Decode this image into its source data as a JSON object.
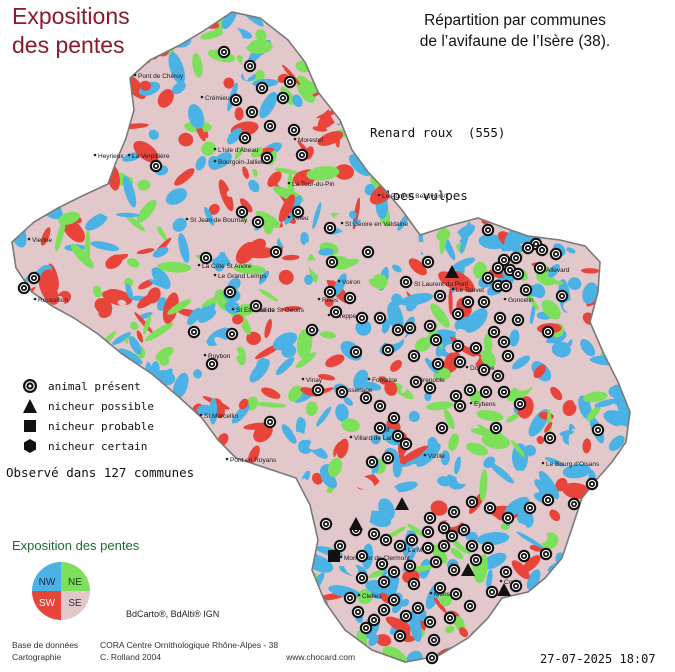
{
  "header": {
    "title_line1": "Expositions",
    "title_line2": "des pentes",
    "subtitle_line1": "Répartition par communes",
    "subtitle_line2": "de l’avifaune de l’Isère (38)."
  },
  "species": {
    "common_name": "Renard roux  (555)",
    "latin_name": "Vulpes vulpes"
  },
  "legend": {
    "items": [
      {
        "symbol": "target",
        "label": "animal présent"
      },
      {
        "symbol": "triangle",
        "label": "nicheur possible"
      },
      {
        "symbol": "square",
        "label": "nicheur probable"
      },
      {
        "symbol": "hexagon",
        "label": "nicheur certain"
      }
    ]
  },
  "observed_text": "Observé dans 127 communes",
  "exposition": {
    "title": "Exposition des pentes",
    "quadrants": [
      {
        "label": "NW",
        "color": "#4ab2e4"
      },
      {
        "label": "NE",
        "color": "#7de05a"
      },
      {
        "label": "SW",
        "color": "#e8443a"
      },
      {
        "label": "SE",
        "color": "#e2c7cb"
      }
    ]
  },
  "source_note": "BdCarto®, BdAlti® IGN",
  "credits": {
    "row1_label": "Base de données",
    "row1_value": "CORA Centre Ornithologique Rhône-Alpes - 38",
    "row2_label": "Cartographie",
    "row2_value": "C. Rolland 2004",
    "row2_url": "www.chocard.com"
  },
  "timestamp": "27-07-2025 18:07",
  "map": {
    "colors": {
      "nw": "#4ab2e4",
      "ne": "#7de05a",
      "sw": "#e8443a",
      "se": "#e2c7cb",
      "outline": "#7a7a7a"
    },
    "place_labels": [
      "Pont de Chéruy",
      "Crémieu",
      "Morestel",
      "La Verpillière",
      "L'Isle d'Abeau",
      "Bourgoin-Jallieu",
      "Heyrieux",
      "La Tour-du-Pin",
      "Le Pont de Beauvoisin",
      "Vienne",
      "St Jean de Bournay",
      "Virieu",
      "St Geoire en Valdaine",
      "La Côte St André",
      "Le Grand Lemps",
      "Rives",
      "Voiron",
      "St Laurent du Pont",
      "Le Touvet",
      "Goncelin",
      "Allevard",
      "Roussillon",
      "St Etienne de St Geoirs",
      "Roybon",
      "Tullins",
      "Voreppe",
      "Vinay",
      "Fontaine",
      "Grenoble",
      "Domène",
      "St Marcellin",
      "Sassenage",
      "Eybens",
      "Vif",
      "Villard de Lans",
      "Vizille",
      "Pont en Royans",
      "Le Bourg d'Oisans",
      "Monestier de Clermont",
      "La Mure",
      "Mens",
      "Corps",
      "Clelles"
    ],
    "marker_types": [
      "animal présent",
      "nicheur possible",
      "nicheur probable"
    ]
  }
}
